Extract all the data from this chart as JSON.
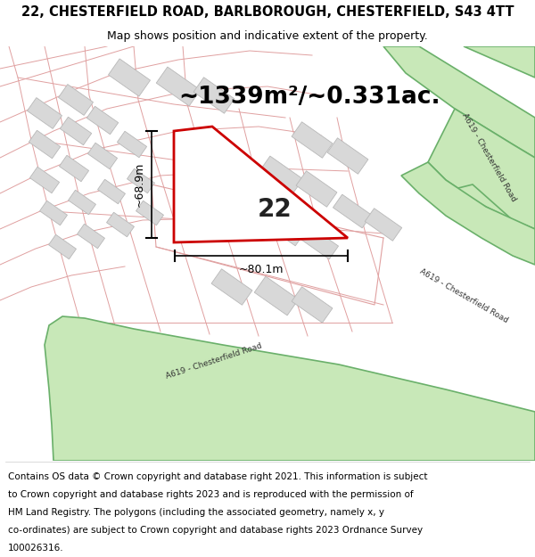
{
  "title_line1": "22, CHESTERFIELD ROAD, BARLBOROUGH, CHESTERFIELD, S43 4TT",
  "title_line2": "Map shows position and indicative extent of the property.",
  "area_text": "~1339m²/~0.331ac.",
  "label_22": "22",
  "dim_width": "~80.1m",
  "dim_height": "~68.9m",
  "footer_lines": [
    "Contains OS data © Crown copyright and database right 2021. This information is subject",
    "to Crown copyright and database rights 2023 and is reproduced with the permission of",
    "HM Land Registry. The polygons (including the associated geometry, namely x, y",
    "co-ordinates) are subject to Crown copyright and database rights 2023 Ordnance Survey",
    "100026316."
  ],
  "map_bg": "#ffffff",
  "green_road_fill": "#c8e8b8",
  "green_road_edge": "#6ab06a",
  "pink_line": "#e8a0a0",
  "gray_building": "#d8d8d8",
  "gray_building_edge": "#b8b8b8",
  "plot_red": "#cc0000",
  "plot_fill": "#ffffff",
  "title_fontsize": 10.5,
  "subtitle_fontsize": 9,
  "area_fontsize": 19,
  "label_fontsize": 20,
  "dim_fontsize": 9,
  "footer_fontsize": 7.5,
  "road_label_fontsize": 6.5
}
